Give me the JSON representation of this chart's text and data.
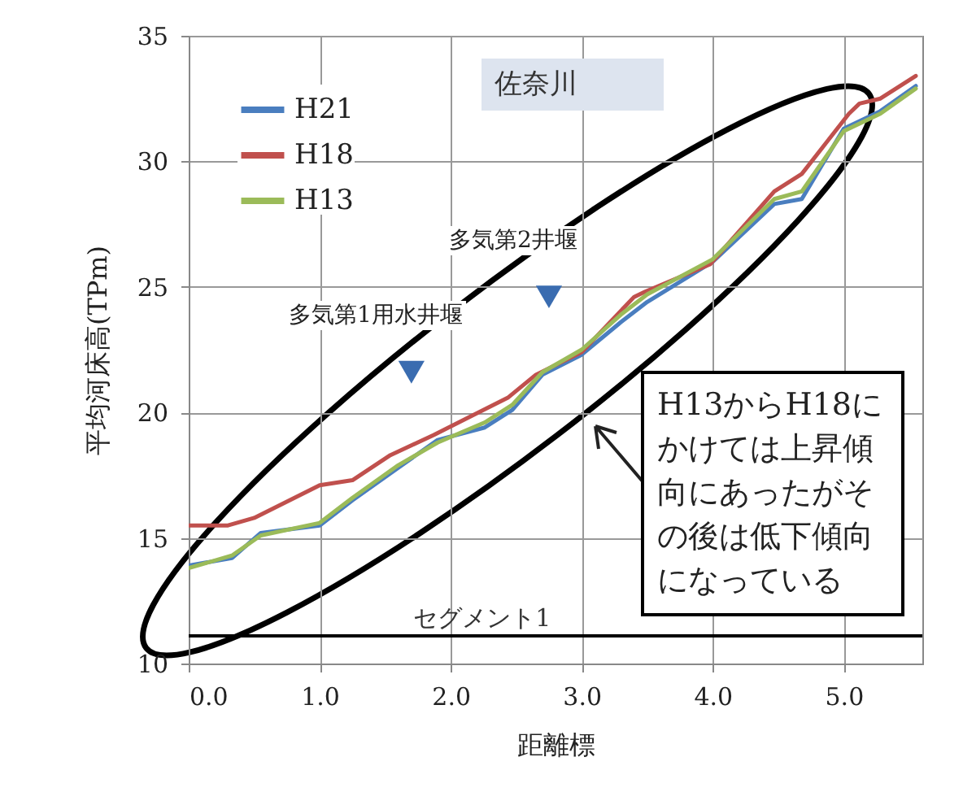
{
  "chart_data": {
    "type": "line",
    "xlabel": "距離標",
    "ylabel": "平均河床高(TPm)",
    "xlim": [
      0,
      5.6
    ],
    "ylim": [
      10,
      35
    ],
    "xticks": [
      {
        "value": 0,
        "label": "0.0"
      },
      {
        "value": 1,
        "label": "1.0"
      },
      {
        "value": 2,
        "label": "2.0"
      },
      {
        "value": 3,
        "label": "3.0"
      },
      {
        "value": 4,
        "label": "4.0"
      },
      {
        "value": 5,
        "label": "5.0"
      }
    ],
    "yticks": [
      10,
      15,
      20,
      25,
      30,
      35
    ],
    "grid": true,
    "legend": "top left",
    "line_style": "solid",
    "marker": "none",
    "series": [
      {
        "name": "H21",
        "color": "#4a7ebf",
        "x": [
          0,
          0.33,
          0.55,
          1.0,
          1.25,
          1.6,
          1.9,
          2.26,
          2.47,
          2.7,
          3.0,
          3.3,
          3.5,
          4.0,
          4.47,
          4.68,
          5.0,
          5.28,
          5.55
        ],
        "values": [
          13.9,
          14.2,
          15.2,
          15.5,
          16.5,
          17.8,
          18.9,
          19.4,
          20.1,
          21.5,
          22.3,
          23.6,
          24.4,
          26.0,
          28.3,
          28.5,
          31.3,
          32.0,
          33.0
        ]
      },
      {
        "name": "H18",
        "color": "#c0504d",
        "x": [
          0,
          0.3,
          0.5,
          1.0,
          1.25,
          1.54,
          1.87,
          2.44,
          2.65,
          3.0,
          3.4,
          3.48,
          3.98,
          4.47,
          4.68,
          5.04,
          5.12,
          5.28,
          5.55
        ],
        "values": [
          15.5,
          15.5,
          15.8,
          17.1,
          17.3,
          18.3,
          19.1,
          20.6,
          21.5,
          22.4,
          24.6,
          24.8,
          25.9,
          28.8,
          29.5,
          31.9,
          32.3,
          32.5,
          33.4
        ]
      },
      {
        "name": "H13",
        "color": "#9bbb59",
        "x": [
          0,
          0.33,
          0.55,
          1.0,
          1.25,
          1.6,
          1.9,
          2.26,
          2.47,
          2.7,
          3.0,
          3.3,
          3.5,
          4.0,
          4.47,
          4.68,
          5.0,
          5.28,
          5.55
        ],
        "values": [
          13.8,
          14.3,
          15.1,
          15.6,
          16.6,
          17.9,
          18.8,
          19.6,
          20.3,
          21.6,
          22.5,
          23.9,
          24.7,
          26.1,
          28.5,
          28.8,
          31.2,
          31.9,
          32.9
        ]
      }
    ],
    "ref_lines": [
      {
        "axis": "y",
        "value": 11.1,
        "label": "セグメント1",
        "color": "#000000"
      }
    ],
    "annotations": [
      "佐奈川",
      {
        "text": "多気第1用水井堰",
        "x": 1.7,
        "y": 21.6
      },
      {
        "text": "多気第2井堰",
        "x": 2.75,
        "y": 24.6
      },
      "H13からH18にかけては上昇傾向にあったがその後は低下傾向になっている"
    ]
  }
}
